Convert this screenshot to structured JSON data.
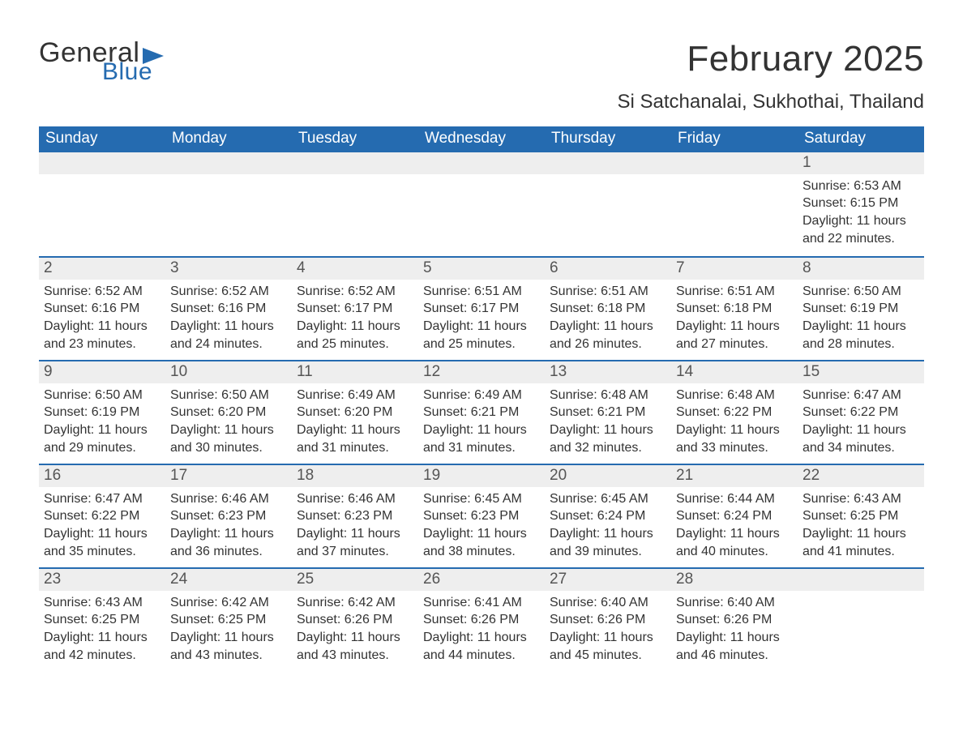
{
  "logo": {
    "word1": "General",
    "word2": "Blue"
  },
  "title": "February 2025",
  "location": "Si Satchanalai, Sukhothai, Thailand",
  "columns": [
    "Sunday",
    "Monday",
    "Tuesday",
    "Wednesday",
    "Thursday",
    "Friday",
    "Saturday"
  ],
  "colors": {
    "header_bg": "#256bb0",
    "header_text": "#ffffff",
    "daynum_bg": "#eeeeee",
    "row_border": "#256bb0",
    "text": "#333333",
    "background": "#ffffff"
  },
  "typography": {
    "title_fontsize": 44,
    "location_fontsize": 24,
    "header_fontsize": 19,
    "daynum_fontsize": 19,
    "body_fontsize": 16
  },
  "weeks": [
    [
      {
        "day": "",
        "sunrise": "",
        "sunset": "",
        "daylight": ""
      },
      {
        "day": "",
        "sunrise": "",
        "sunset": "",
        "daylight": ""
      },
      {
        "day": "",
        "sunrise": "",
        "sunset": "",
        "daylight": ""
      },
      {
        "day": "",
        "sunrise": "",
        "sunset": "",
        "daylight": ""
      },
      {
        "day": "",
        "sunrise": "",
        "sunset": "",
        "daylight": ""
      },
      {
        "day": "",
        "sunrise": "",
        "sunset": "",
        "daylight": ""
      },
      {
        "day": "1",
        "sunrise": "Sunrise: 6:53 AM",
        "sunset": "Sunset: 6:15 PM",
        "daylight": "Daylight: 11 hours and 22 minutes."
      }
    ],
    [
      {
        "day": "2",
        "sunrise": "Sunrise: 6:52 AM",
        "sunset": "Sunset: 6:16 PM",
        "daylight": "Daylight: 11 hours and 23 minutes."
      },
      {
        "day": "3",
        "sunrise": "Sunrise: 6:52 AM",
        "sunset": "Sunset: 6:16 PM",
        "daylight": "Daylight: 11 hours and 24 minutes."
      },
      {
        "day": "4",
        "sunrise": "Sunrise: 6:52 AM",
        "sunset": "Sunset: 6:17 PM",
        "daylight": "Daylight: 11 hours and 25 minutes."
      },
      {
        "day": "5",
        "sunrise": "Sunrise: 6:51 AM",
        "sunset": "Sunset: 6:17 PM",
        "daylight": "Daylight: 11 hours and 25 minutes."
      },
      {
        "day": "6",
        "sunrise": "Sunrise: 6:51 AM",
        "sunset": "Sunset: 6:18 PM",
        "daylight": "Daylight: 11 hours and 26 minutes."
      },
      {
        "day": "7",
        "sunrise": "Sunrise: 6:51 AM",
        "sunset": "Sunset: 6:18 PM",
        "daylight": "Daylight: 11 hours and 27 minutes."
      },
      {
        "day": "8",
        "sunrise": "Sunrise: 6:50 AM",
        "sunset": "Sunset: 6:19 PM",
        "daylight": "Daylight: 11 hours and 28 minutes."
      }
    ],
    [
      {
        "day": "9",
        "sunrise": "Sunrise: 6:50 AM",
        "sunset": "Sunset: 6:19 PM",
        "daylight": "Daylight: 11 hours and 29 minutes."
      },
      {
        "day": "10",
        "sunrise": "Sunrise: 6:50 AM",
        "sunset": "Sunset: 6:20 PM",
        "daylight": "Daylight: 11 hours and 30 minutes."
      },
      {
        "day": "11",
        "sunrise": "Sunrise: 6:49 AM",
        "sunset": "Sunset: 6:20 PM",
        "daylight": "Daylight: 11 hours and 31 minutes."
      },
      {
        "day": "12",
        "sunrise": "Sunrise: 6:49 AM",
        "sunset": "Sunset: 6:21 PM",
        "daylight": "Daylight: 11 hours and 31 minutes."
      },
      {
        "day": "13",
        "sunrise": "Sunrise: 6:48 AM",
        "sunset": "Sunset: 6:21 PM",
        "daylight": "Daylight: 11 hours and 32 minutes."
      },
      {
        "day": "14",
        "sunrise": "Sunrise: 6:48 AM",
        "sunset": "Sunset: 6:22 PM",
        "daylight": "Daylight: 11 hours and 33 minutes."
      },
      {
        "day": "15",
        "sunrise": "Sunrise: 6:47 AM",
        "sunset": "Sunset: 6:22 PM",
        "daylight": "Daylight: 11 hours and 34 minutes."
      }
    ],
    [
      {
        "day": "16",
        "sunrise": "Sunrise: 6:47 AM",
        "sunset": "Sunset: 6:22 PM",
        "daylight": "Daylight: 11 hours and 35 minutes."
      },
      {
        "day": "17",
        "sunrise": "Sunrise: 6:46 AM",
        "sunset": "Sunset: 6:23 PM",
        "daylight": "Daylight: 11 hours and 36 minutes."
      },
      {
        "day": "18",
        "sunrise": "Sunrise: 6:46 AM",
        "sunset": "Sunset: 6:23 PM",
        "daylight": "Daylight: 11 hours and 37 minutes."
      },
      {
        "day": "19",
        "sunrise": "Sunrise: 6:45 AM",
        "sunset": "Sunset: 6:23 PM",
        "daylight": "Daylight: 11 hours and 38 minutes."
      },
      {
        "day": "20",
        "sunrise": "Sunrise: 6:45 AM",
        "sunset": "Sunset: 6:24 PM",
        "daylight": "Daylight: 11 hours and 39 minutes."
      },
      {
        "day": "21",
        "sunrise": "Sunrise: 6:44 AM",
        "sunset": "Sunset: 6:24 PM",
        "daylight": "Daylight: 11 hours and 40 minutes."
      },
      {
        "day": "22",
        "sunrise": "Sunrise: 6:43 AM",
        "sunset": "Sunset: 6:25 PM",
        "daylight": "Daylight: 11 hours and 41 minutes."
      }
    ],
    [
      {
        "day": "23",
        "sunrise": "Sunrise: 6:43 AM",
        "sunset": "Sunset: 6:25 PM",
        "daylight": "Daylight: 11 hours and 42 minutes."
      },
      {
        "day": "24",
        "sunrise": "Sunrise: 6:42 AM",
        "sunset": "Sunset: 6:25 PM",
        "daylight": "Daylight: 11 hours and 43 minutes."
      },
      {
        "day": "25",
        "sunrise": "Sunrise: 6:42 AM",
        "sunset": "Sunset: 6:26 PM",
        "daylight": "Daylight: 11 hours and 43 minutes."
      },
      {
        "day": "26",
        "sunrise": "Sunrise: 6:41 AM",
        "sunset": "Sunset: 6:26 PM",
        "daylight": "Daylight: 11 hours and 44 minutes."
      },
      {
        "day": "27",
        "sunrise": "Sunrise: 6:40 AM",
        "sunset": "Sunset: 6:26 PM",
        "daylight": "Daylight: 11 hours and 45 minutes."
      },
      {
        "day": "28",
        "sunrise": "Sunrise: 6:40 AM",
        "sunset": "Sunset: 6:26 PM",
        "daylight": "Daylight: 11 hours and 46 minutes."
      },
      {
        "day": "",
        "sunrise": "",
        "sunset": "",
        "daylight": ""
      }
    ]
  ]
}
